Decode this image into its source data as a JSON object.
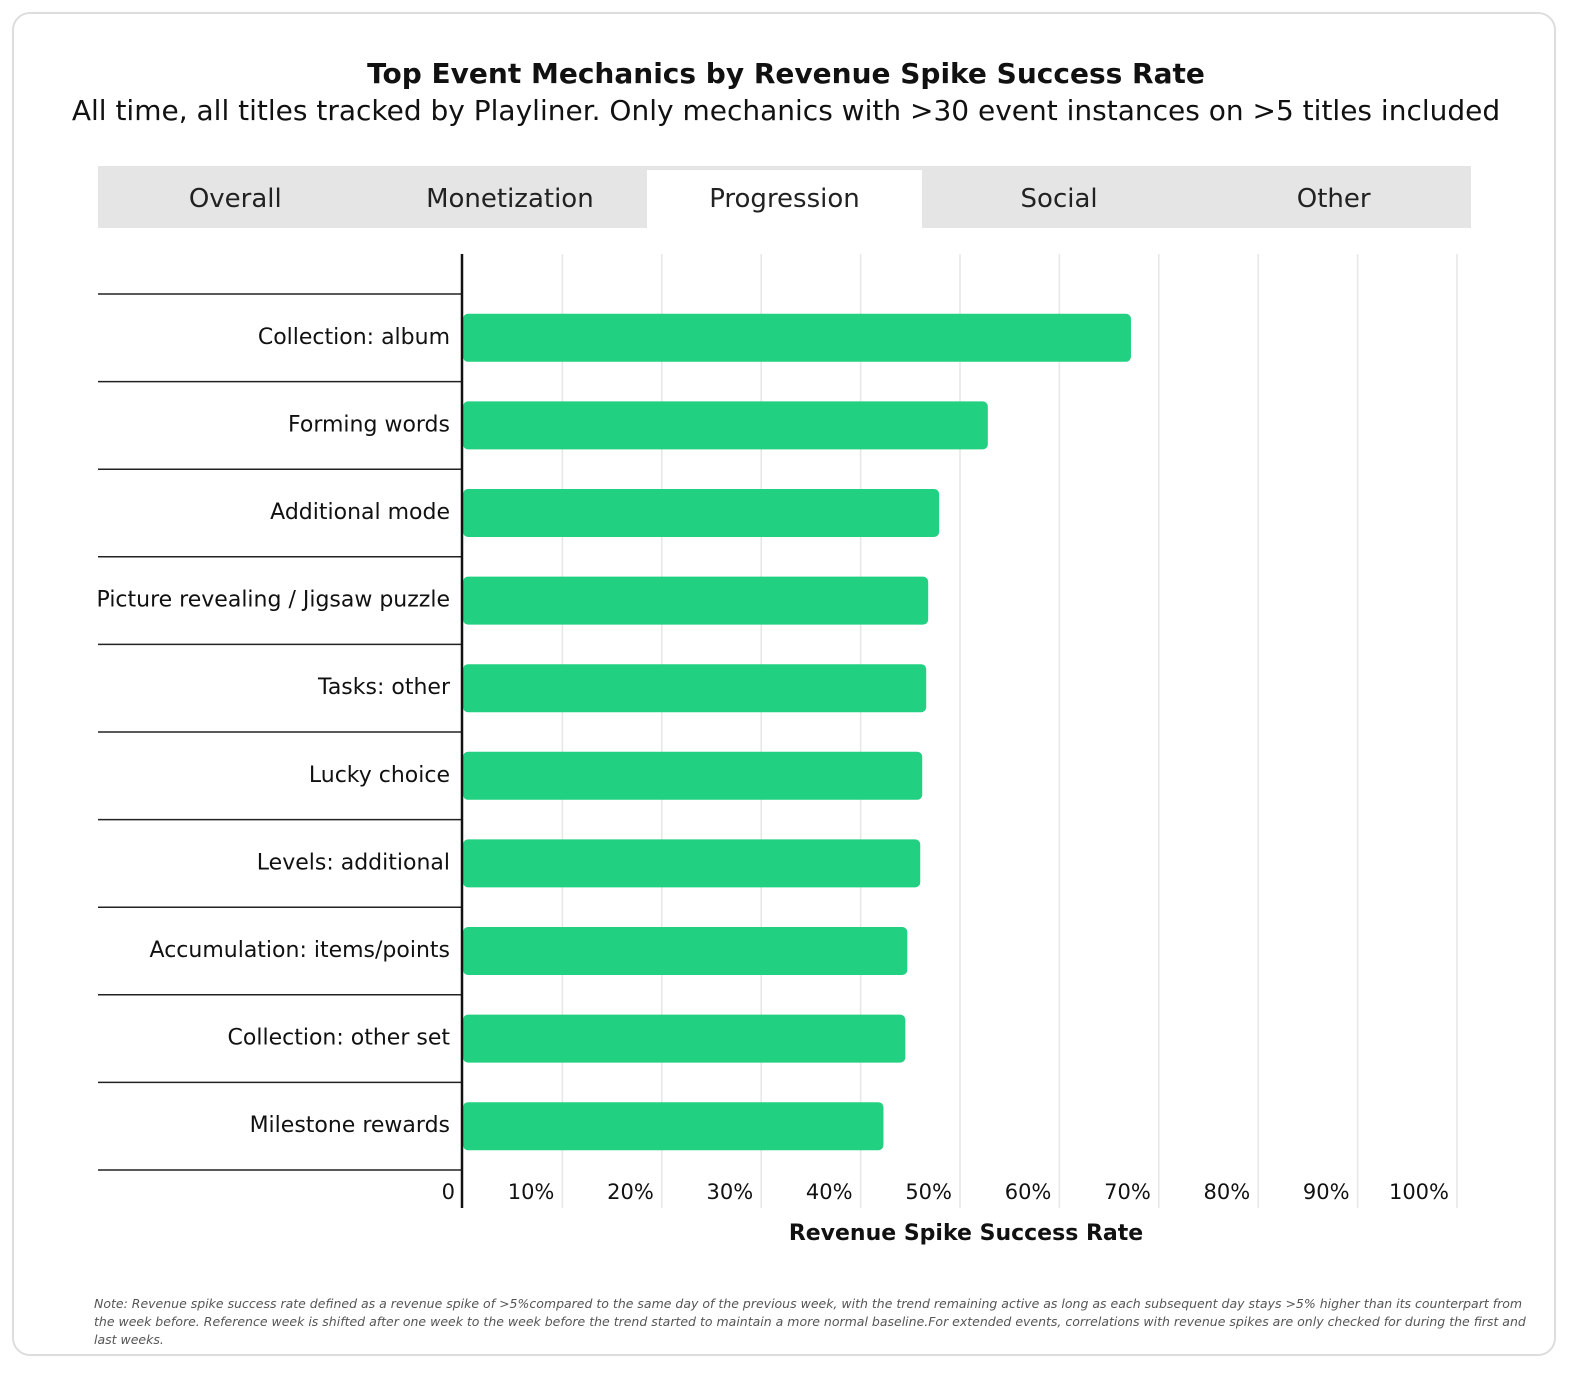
{
  "tabs": [
    "Overall",
    "Monetization",
    "Progression",
    "Social",
    "Other"
  ],
  "active_tab": 2,
  "chart_data": {
    "type": "hbar",
    "title": "Top Event Mechanics by Revenue Spike Success Rate",
    "subtitle": "All time, all titles tracked by Playliner. Only mechanics with >30 event instances on >5 titles included",
    "categories": [
      "Collection: album",
      "Forming words",
      "Additional mode",
      "Picture revealing / Jigsaw puzzle",
      "Tasks: other",
      "Lucky choice",
      "Levels: additional",
      "Accumulation: items/points",
      "Collection: other set",
      "Milestone rewards"
    ],
    "values": [
      67.2,
      52.8,
      47.9,
      46.8,
      46.6,
      46.2,
      46.0,
      44.7,
      44.5,
      42.3
    ],
    "color": "#22d081",
    "xlim": [
      0,
      100
    ],
    "xticks": [
      0,
      {
        "value": 10,
        "label": "10%"
      },
      {
        "value": 20,
        "label": "20%"
      },
      {
        "value": 30,
        "label": "30%"
      },
      {
        "value": 40,
        "label": "40%"
      },
      {
        "value": 50,
        "label": "50%"
      },
      {
        "value": 60,
        "label": "60%"
      },
      {
        "value": 70,
        "label": "70%"
      },
      {
        "value": 80,
        "label": "80%"
      },
      {
        "value": 90,
        "label": "90%"
      },
      {
        "value": 100,
        "label": "100%"
      }
    ],
    "grid": true,
    "x_label": "Revenue Spike Success Rate",
    "note": "Note: Revenue spike success rate defined as a revenue spike of >5%compared to the same day of the previous week, with the trend remaining active as long as each subsequent day stays >5% higher than its counterpart from the week before. Reference week is shifted after one week to the week before the trend started to maintain a more normal baseline.For extended events, correlations with revenue spikes are only checked for during the first and last weeks."
  }
}
